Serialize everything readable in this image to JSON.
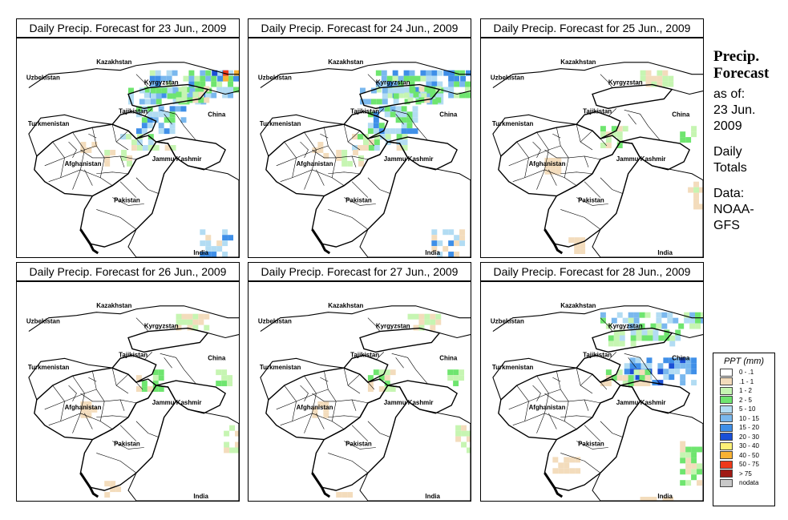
{
  "panels": [
    {
      "title": "Daily Precip. Forecast for  23 Jun., 2009",
      "intensity": "heavy"
    },
    {
      "title": "Daily Precip. Forecast for  24 Jun., 2009",
      "intensity": "heavy"
    },
    {
      "title": "Daily Precip. Forecast for  25 Jun., 2009",
      "intensity": "light"
    },
    {
      "title": "Daily Precip. Forecast for  26 Jun., 2009",
      "intensity": "light"
    },
    {
      "title": "Daily Precip. Forecast for  27 Jun., 2009",
      "intensity": "light"
    },
    {
      "title": "Daily Precip. Forecast for  28 Jun., 2009",
      "intensity": "moderate"
    }
  ],
  "map_labels": {
    "kazakhstan": "Kazakhstan",
    "uzbekistan": "Uzbekistan",
    "kyrgyzstan": "Kyrgyzstan",
    "tajikistan": "Tajikistan",
    "turkmenistan": "Turkmenistan",
    "china": "China",
    "afghanistan": "Afghanistan",
    "jammu_kashmir": "Jammu Kashmir",
    "pakistan": "Pakistan",
    "india": "India"
  },
  "sidebar": {
    "title_line1": "Precip.",
    "title_line2": "Forecast",
    "asof_line1": "as of:",
    "asof_line2": "23 Jun.",
    "asof_line3": "2009",
    "totals_line1": "Daily",
    "totals_line2": "Totals",
    "data_line1": "Data:",
    "data_line2": "NOAA-",
    "data_line3": "GFS"
  },
  "legend": {
    "title": "PPT (mm)",
    "items": [
      {
        "label": "0 - .1",
        "color": "#ffffff"
      },
      {
        "label": ".1 - 1",
        "color": "#f3dcbc"
      },
      {
        "label": "1 - 2",
        "color": "#c6f5b2"
      },
      {
        "label": "2 - 5",
        "color": "#6fe56f"
      },
      {
        "label": "5 - 10",
        "color": "#b2dcf3"
      },
      {
        "label": "10 - 15",
        "color": "#7ab8ee"
      },
      {
        "label": "15 - 20",
        "color": "#3f8fe8"
      },
      {
        "label": "20 - 30",
        "color": "#1a4fd6"
      },
      {
        "label": "30 - 40",
        "color": "#fff176"
      },
      {
        "label": "40 - 50",
        "color": "#f9b233"
      },
      {
        "label": "50 - 75",
        "color": "#ee3a1a"
      },
      {
        "label": "> 75",
        "color": "#a01a14"
      },
      {
        "label": "nodata",
        "color": "#c8c8c8"
      }
    ]
  }
}
